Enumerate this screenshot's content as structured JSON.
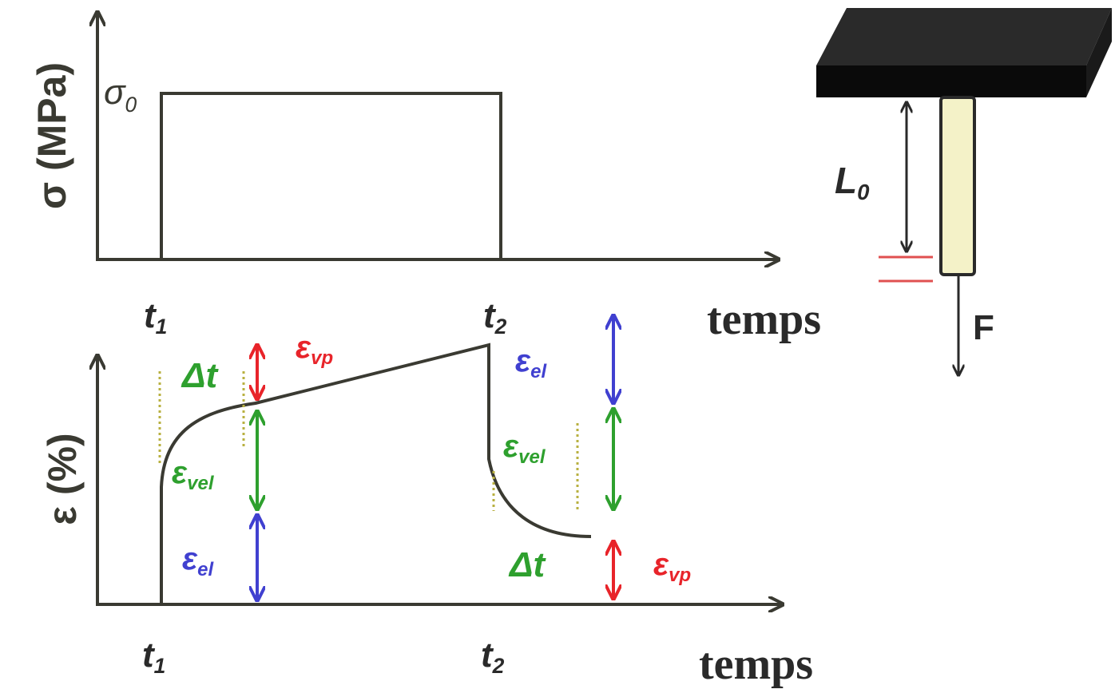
{
  "stress_plot": {
    "y_label": "σ (MPa)",
    "level": {
      "symbol": "σ",
      "sub": "0"
    },
    "t1": {
      "symbol": "t",
      "sub": "1"
    },
    "t2": {
      "symbol": "t",
      "sub": "2"
    },
    "x_label": "temps"
  },
  "strain_plot": {
    "y_label": "ε (%)",
    "t1": {
      "symbol": "t",
      "sub": "1"
    },
    "t2": {
      "symbol": "t",
      "sub": "2"
    },
    "x_label": "temps",
    "loading": {
      "delta_t": "Δt",
      "vp": {
        "symbol": "ε",
        "sub": "vp"
      },
      "vel": {
        "symbol": "ε",
        "sub": "vel"
      },
      "el": {
        "symbol": "ε",
        "sub": "el"
      }
    },
    "unloading": {
      "el": {
        "symbol": "ε",
        "sub": "el"
      },
      "vel": {
        "symbol": "ε",
        "sub": "vel"
      },
      "delta_t": "Δt",
      "vp": {
        "symbol": "ε",
        "sub": "vp"
      }
    }
  },
  "specimen": {
    "length": {
      "symbol": "L",
      "sub": "0"
    },
    "force": "F"
  }
}
